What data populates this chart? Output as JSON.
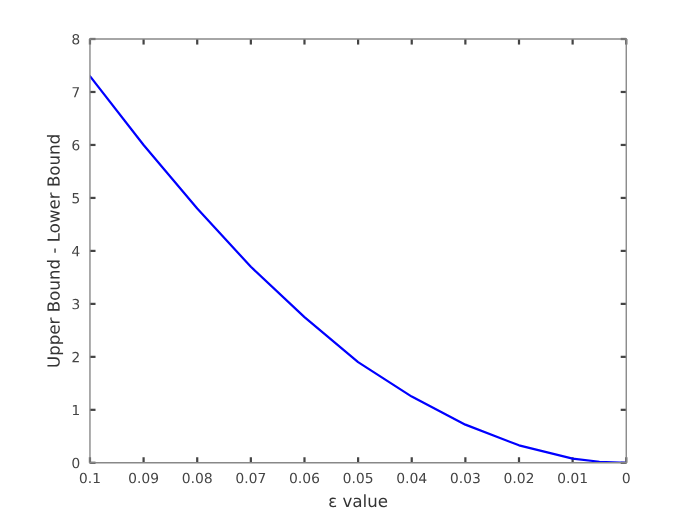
{
  "chart_data": {
    "type": "line",
    "xlabel": "ε value",
    "ylabel": "Upper Bound - Lower Bound",
    "x": [
      0.1,
      0.09,
      0.08,
      0.07,
      0.06,
      0.05,
      0.04,
      0.03,
      0.02,
      0.01,
      0.005,
      0
    ],
    "series": [
      {
        "color": "#0000ff",
        "values": [
          7.3,
          6.0,
          4.8,
          3.7,
          2.75,
          1.9,
          1.25,
          0.72,
          0.33,
          0.08,
          0.02,
          0
        ]
      }
    ],
    "xlim": [
      0.1,
      0
    ],
    "ylim": [
      0,
      8
    ],
    "xticks": [
      0.1,
      0.09,
      0.08,
      0.07,
      0.06,
      0.05,
      0.04,
      0.03,
      0.02,
      0.01,
      0
    ],
    "yticks": [
      0,
      1,
      2,
      3,
      4,
      5,
      6,
      7,
      8
    ],
    "grid": false,
    "legend": false,
    "marker": "none",
    "line_style": "solid"
  }
}
